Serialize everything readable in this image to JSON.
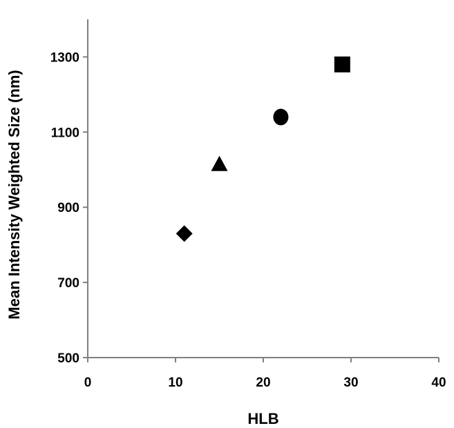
{
  "chart_data": {
    "type": "scatter",
    "title": "",
    "xlabel": "HLB",
    "ylabel": "Mean Intensity Weighted Size (nm)",
    "xlim": [
      0,
      40
    ],
    "ylim": [
      500,
      1400
    ],
    "x_ticks": [
      0,
      10,
      20,
      30,
      40
    ],
    "y_ticks": [
      500,
      700,
      900,
      1100,
      1300
    ],
    "grid": false,
    "legend": "none",
    "points": [
      {
        "x": 11,
        "y": 830,
        "marker": "diamond-icon"
      },
      {
        "x": 15,
        "y": 1015,
        "marker": "triangle-icon"
      },
      {
        "x": 22,
        "y": 1140,
        "marker": "circle-icon"
      },
      {
        "x": 29,
        "y": 1280,
        "marker": "square-icon"
      }
    ],
    "marker_color": "#000000",
    "axis_color": "#7f7f7f"
  }
}
